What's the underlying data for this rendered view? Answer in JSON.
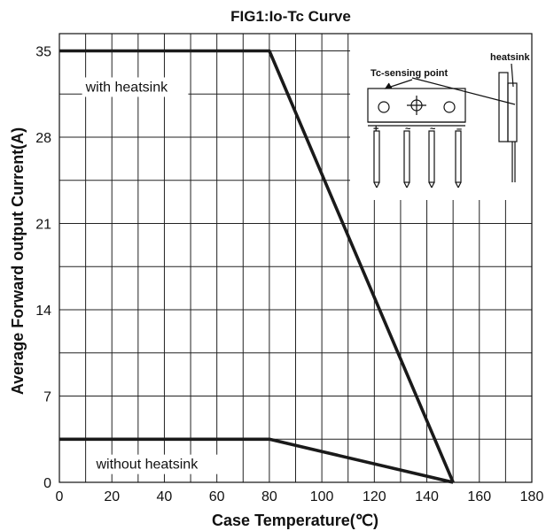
{
  "chart_data": {
    "type": "line",
    "title": "FIG1:Io-Tc Curve",
    "xlabel": "Case Temperature(℃)",
    "ylabel": "Average Forward output Current(A)",
    "xlim": [
      0,
      180
    ],
    "ylim": [
      0,
      36.4
    ],
    "xticks": [
      "0",
      "20",
      "40",
      "60",
      "80",
      "100",
      "120",
      "140",
      "160",
      "180"
    ],
    "xtick_values": [
      0,
      20,
      40,
      60,
      80,
      100,
      120,
      140,
      160,
      180
    ],
    "yticks": [
      "0",
      "7",
      "14",
      "21",
      "28",
      "35"
    ],
    "ytick_values": [
      0,
      7,
      14,
      21,
      28,
      35
    ],
    "grid": true,
    "series": [
      {
        "x": [
          0,
          80,
          150
        ],
        "y": [
          35,
          35,
          0
        ]
      },
      {
        "x": [
          0,
          80,
          150
        ],
        "y": [
          3.5,
          3.5,
          0
        ]
      }
    ],
    "annotations": [
      {
        "text": "with heatsink",
        "x": 10,
        "y": 31.7
      },
      {
        "text": "without heatsink",
        "x": 14,
        "y": 1.1
      }
    ]
  },
  "inset": {
    "heatsink_label": "heatsink",
    "tc_label": "Tc-sensing point",
    "pin_marks": [
      "+",
      "~",
      "~",
      "–"
    ]
  }
}
